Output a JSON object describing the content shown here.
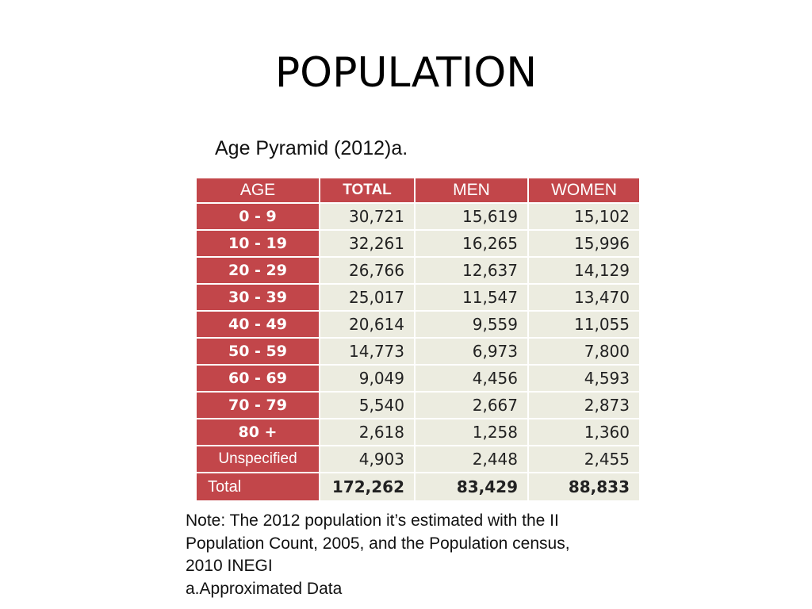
{
  "slide": {
    "title": "POPULATION"
  },
  "table": {
    "caption": "Age Pyramid (2012)a.",
    "headers": {
      "age": "AGE",
      "total": "TOTAL",
      "men": "MEN",
      "women": "WOMEN"
    },
    "rows": [
      {
        "age": "0 - 9",
        "total": "30,721",
        "men": "15,619",
        "women": "15,102"
      },
      {
        "age": "10 - 19",
        "total": "32,261",
        "men": "16,265",
        "women": "15,996"
      },
      {
        "age": "20 - 29",
        "total": "26,766",
        "men": "12,637",
        "women": "14,129"
      },
      {
        "age": "30 - 39",
        "total": "25,017",
        "men": "11,547",
        "women": "13,470"
      },
      {
        "age": "40 - 49",
        "total": "20,614",
        "men": "9,559",
        "women": "11,055"
      },
      {
        "age": "50 - 59",
        "total": "14,773",
        "men": "6,973",
        "women": "7,800"
      },
      {
        "age": "60 - 69",
        "total": "9,049",
        "men": "4,456",
        "women": "4,593"
      },
      {
        "age": "70 - 79",
        "total": "5,540",
        "men": "2,667",
        "women": "2,873"
      },
      {
        "age": "80 +",
        "total": "2,618",
        "men": "1,258",
        "women": "1,360"
      },
      {
        "age": "Unspecified",
        "total": "4,903",
        "men": "2,448",
        "women": "2,455"
      }
    ],
    "total_row": {
      "age": "Total",
      "total": "172,262",
      "men": "83,429",
      "women": "88,833"
    }
  },
  "note": {
    "lines": [
      "Note: The 2012 population it’s estimated with the II",
      "Population Count, 2005, and the Population census,",
      "2010 INEGI",
      "a.Approximated Data"
    ]
  },
  "colors": {
    "header_red": "#c2464a",
    "cell_beige": "#ecece0"
  }
}
